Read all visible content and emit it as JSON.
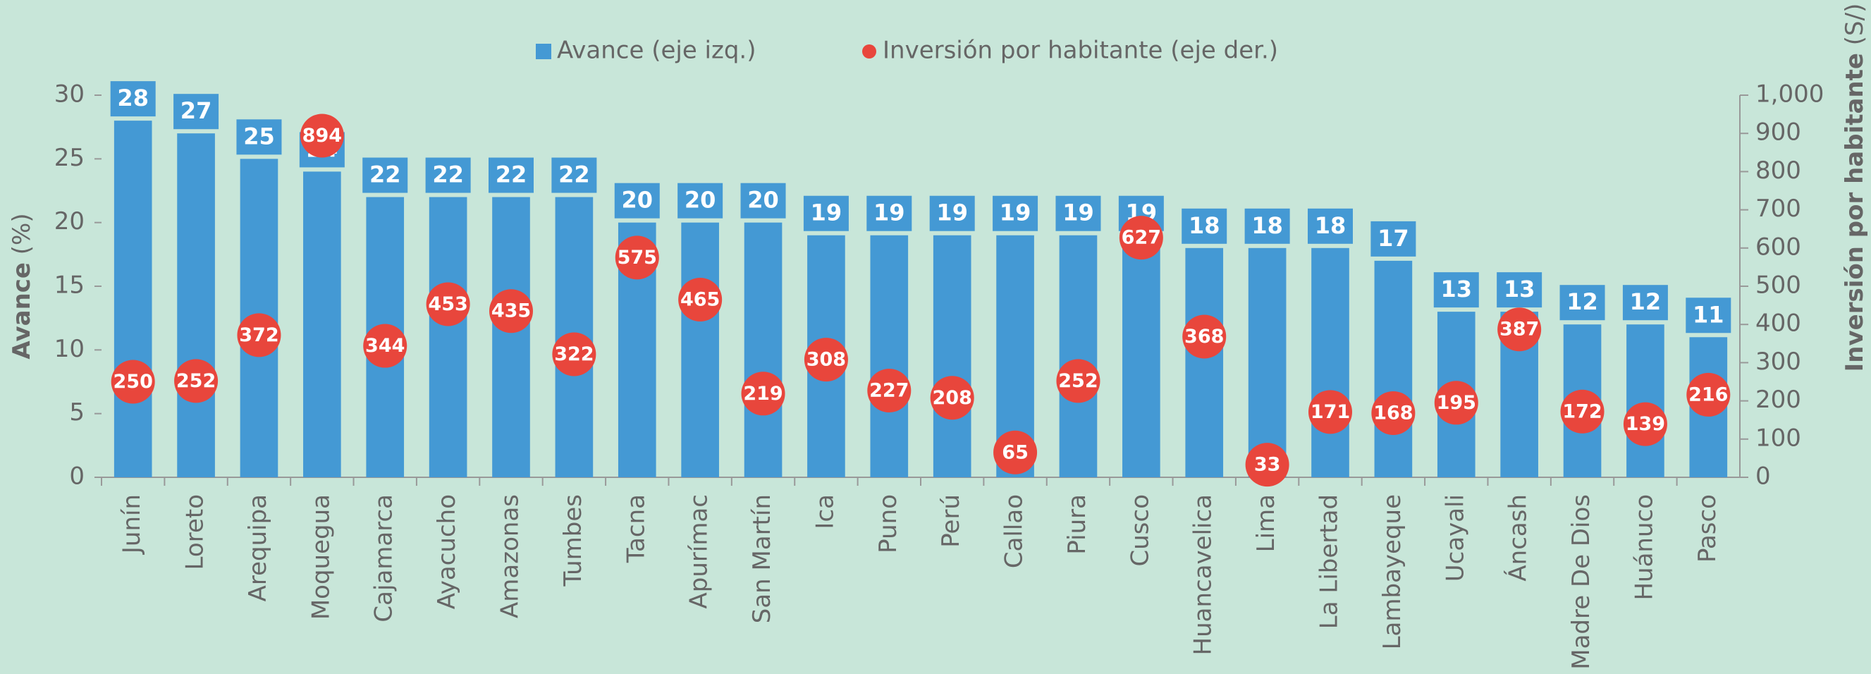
{
  "chart_data": {
    "type": "bar_dot",
    "legend": "top",
    "y_label": "Avance",
    "y_label_unit": "(%)",
    "y2_label": "Inversión por habitante",
    "y2_label_unit": "(S/)",
    "categories": [
      "Junín",
      "Loreto",
      "Arequipa",
      "Moquegua",
      "Cajamarca",
      "Ayacucho",
      "Amazonas",
      "Tumbes",
      "Tacna",
      "Apurímac",
      "San Martín",
      "Ica",
      "Puno",
      "Perú",
      "Callao",
      "Piura",
      "Cusco",
      "Huancavelica",
      "Lima",
      "La Libertad",
      "Lambayeque",
      "Ucayali",
      "Áncash",
      "Madre De Dios",
      "Huánuco",
      "Pasco"
    ],
    "series": [
      {
        "name": "Avance (eje izq.)",
        "color": "#4499d4",
        "type": "bar",
        "values": [
          28,
          27,
          25,
          24,
          22,
          22,
          22,
          22,
          20,
          20,
          20,
          19,
          19,
          19,
          19,
          19,
          19,
          18,
          18,
          18,
          17,
          13,
          13,
          12,
          12,
          11
        ]
      },
      {
        "name": "Inversión por habitante (eje der.)",
        "color": "#e8463c",
        "type": "dot",
        "axis": "y2",
        "values": [
          250,
          252,
          372,
          894,
          344,
          453,
          435,
          322,
          575,
          465,
          219,
          308,
          227,
          208,
          65,
          252,
          627,
          368,
          33,
          171,
          168,
          195,
          387,
          172,
          139,
          216
        ]
      }
    ],
    "ylim": [
      0,
      30
    ],
    "yticks": [
      0,
      5,
      10,
      15,
      20,
      25,
      30
    ],
    "y2lim": [
      0,
      1000
    ],
    "y2ticks": [
      0,
      100,
      200,
      300,
      400,
      500,
      600,
      700,
      800,
      900,
      {
        "value": 1000,
        "label": "1,000"
      }
    ]
  }
}
